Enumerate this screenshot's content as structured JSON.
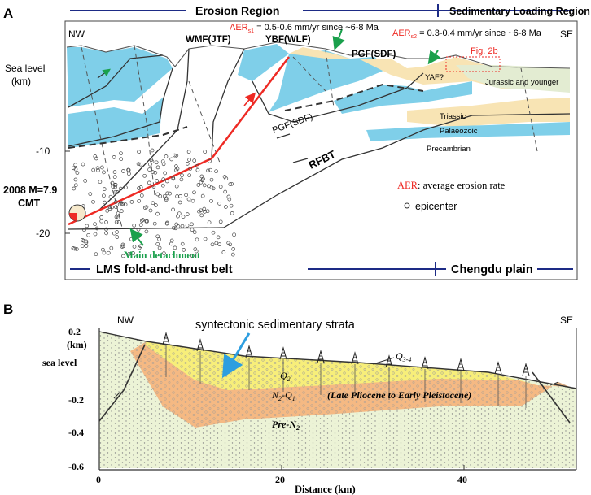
{
  "panel_a": {
    "label": "A",
    "erosion_region": "Erosion Region",
    "sedimentary_region": "Sedimentary Loading Region",
    "nw": "NW",
    "se": "SE",
    "sea_level": "Sea level",
    "km": "(km)",
    "depth_10": "-10",
    "depth_20": "-20",
    "wmf": "WMF(JTF)",
    "ybf": "YBF(WLF)",
    "pgf_top": "PGF(SDF)",
    "pgf_mid": "PGF(SDF)",
    "rfbt": "RFBT",
    "aer1_prefix": "AER",
    "aer1_sub": "s1",
    "aer1_text": " = 0.5-0.6 mm/yr since ~6-8 Ma",
    "aer2_prefix": "AER",
    "aer2_sub": "s2",
    "aer2_text": " = 0.3-0.4 mm/yr since ~6-8 Ma",
    "fig2b": "Fig. 2b",
    "yaf": "YAF?",
    "jurassic": "Jurassic and younger",
    "triassic": "Triassic",
    "palaeozoic": "Palaeozoic",
    "precambrian": "Precambrian",
    "legend_aer_key": "AER",
    "legend_aer_text": ": average erosion rate",
    "legend_epicenter": "epicenter",
    "cmt_line1": "2008 M=7.9",
    "cmt_line2": "CMT",
    "main_detachment": "Main detachment",
    "lms": "LMS fold-and-thrust belt",
    "chengdu": "Chengdu plain"
  },
  "panel_b": {
    "label": "B",
    "nw": "NW",
    "se": "SE",
    "syntectonic": "syntectonic sedimentary strata",
    "y_0_2": "0.2",
    "y_km": "(km)",
    "sea_level": "sea level",
    "y_m0_2": "-0.2",
    "y_m0_4": "-0.4",
    "y_m0_6": "-0.6",
    "x_0": "0",
    "x_20": "20",
    "x_40": "40",
    "x_title": "Distance (km)",
    "q34": "Q",
    "q34_sub": "3-4",
    "q2": "Q",
    "q2_sub": "2",
    "n2q1_a": "N",
    "n2q1_sub1": "2",
    "n2q1_b": "-Q",
    "n2q1_sub2": "1",
    "late_pliocene": "(Late Pliocene to Early Pleistocene)",
    "pre_n2": "Pre-N",
    "pre_n2_sub": "2"
  },
  "colors": {
    "blue": "#7fcfe9",
    "tan": "#f8e4b4",
    "green": "#e3ecd2",
    "red": "#ee2a24",
    "arrow_green": "#1aa04c",
    "navy": "#1d2b86",
    "b_green": "#ecf3d6",
    "b_yellow": "#f7ee7a",
    "b_orange": "#f5b983",
    "arrow_blue": "#2d9ee0"
  }
}
